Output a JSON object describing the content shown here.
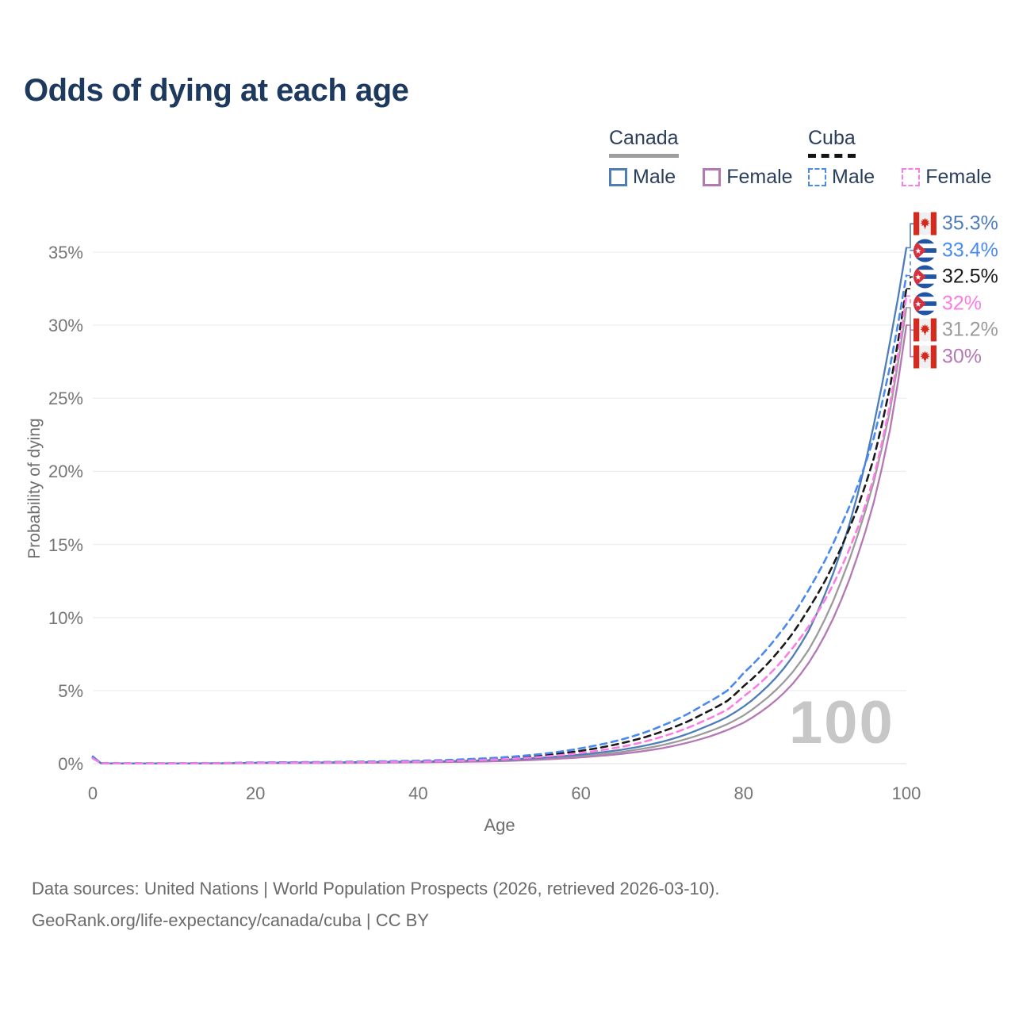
{
  "title": "Odds of dying at each age",
  "legend": {
    "groups": [
      {
        "label": "Canada",
        "underline_color": "#9e9e9e",
        "underline_style": "solid",
        "items": [
          {
            "label": "Male",
            "color": "#4e7db7",
            "dashed": false
          },
          {
            "label": "Female",
            "color": "#b478b4",
            "dashed": false
          }
        ]
      },
      {
        "label": "Cuba",
        "underline_color": "#141414",
        "underline_style": "dashed",
        "items": [
          {
            "label": "Male",
            "color": "#4a8af0",
            "dashed": true
          },
          {
            "label": "Female",
            "color": "#fb7de4",
            "dashed": true
          }
        ]
      }
    ]
  },
  "chart_data": {
    "type": "line",
    "title": "Odds of dying at each age",
    "xlabel": "Age",
    "ylabel": "Probability of dying",
    "xlim": [
      0,
      100
    ],
    "ylim": [
      0,
      37
    ],
    "x_ticks": [
      0,
      20,
      40,
      60,
      80,
      100
    ],
    "y_ticks": [
      0,
      5,
      10,
      15,
      20,
      25,
      30,
      35
    ],
    "y_tick_suffix": "%",
    "grid": "horizontal",
    "legend_position": "top-right",
    "watermark": "100",
    "x": [
      0,
      1,
      5,
      10,
      20,
      30,
      40,
      45,
      50,
      55,
      60,
      65,
      70,
      75,
      78,
      80,
      82,
      84,
      86,
      88,
      90,
      92,
      94,
      96,
      98,
      100
    ],
    "series": [
      {
        "name": "Canada Male",
        "country": "canada",
        "sex": "male",
        "color": "#4e7db7",
        "dashed": false,
        "end_label": "35.3%",
        "values": [
          0.5,
          0.03,
          0.01,
          0.01,
          0.06,
          0.09,
          0.14,
          0.18,
          0.26,
          0.4,
          0.62,
          0.95,
          1.5,
          2.45,
          3.2,
          3.9,
          4.8,
          5.9,
          7.3,
          9.1,
          11.6,
          14.6,
          18.4,
          23.2,
          28.9,
          35.3
        ]
      },
      {
        "name": "Cuba Male",
        "country": "cuba",
        "sex": "male",
        "color": "#4a8af0",
        "dashed": true,
        "end_label": "33.4%",
        "values": [
          0.45,
          0.03,
          0.02,
          0.02,
          0.08,
          0.12,
          0.2,
          0.28,
          0.42,
          0.65,
          1.05,
          1.65,
          2.6,
          4.0,
          5.0,
          6.2,
          7.3,
          8.6,
          10.1,
          11.9,
          13.9,
          16.3,
          19.0,
          22.3,
          27.2,
          33.4
        ]
      },
      {
        "name": "Cuba Both sexes",
        "country": "cuba",
        "sex": "both",
        "color": "#1a1a1a",
        "dashed": true,
        "end_label": "32.5%",
        "values": [
          0.4,
          0.028,
          0.015,
          0.015,
          0.06,
          0.1,
          0.17,
          0.23,
          0.35,
          0.55,
          0.88,
          1.4,
          2.2,
          3.4,
          4.3,
          5.3,
          6.3,
          7.5,
          8.9,
          10.6,
          12.5,
          14.8,
          17.5,
          20.9,
          25.8,
          32.5
        ]
      },
      {
        "name": "Cuba Female",
        "country": "cuba",
        "sex": "female",
        "color": "#fb7de4",
        "dashed": true,
        "end_label": "32%",
        "values": [
          0.35,
          0.025,
          0.012,
          0.012,
          0.045,
          0.08,
          0.14,
          0.19,
          0.29,
          0.46,
          0.73,
          1.15,
          1.85,
          2.9,
          3.7,
          4.6,
          5.5,
          6.6,
          7.9,
          9.4,
          11.2,
          13.4,
          16.1,
          19.6,
          24.6,
          32.0
        ]
      },
      {
        "name": "Canada Both sexes",
        "country": "canada",
        "sex": "both",
        "color": "#9b9b9b",
        "dashed": false,
        "end_label": "31.2%",
        "values": [
          0.45,
          0.025,
          0.008,
          0.008,
          0.045,
          0.07,
          0.11,
          0.145,
          0.21,
          0.33,
          0.52,
          0.8,
          1.27,
          2.05,
          2.7,
          3.3,
          4.1,
          5.05,
          6.25,
          7.8,
          9.9,
          12.5,
          15.6,
          19.3,
          24.2,
          31.2
        ]
      },
      {
        "name": "Canada Female",
        "country": "canada",
        "sex": "female",
        "color": "#b478b4",
        "dashed": false,
        "end_label": "30%",
        "values": [
          0.4,
          0.02,
          0.007,
          0.007,
          0.03,
          0.05,
          0.09,
          0.12,
          0.17,
          0.27,
          0.43,
          0.67,
          1.06,
          1.72,
          2.3,
          2.8,
          3.5,
          4.35,
          5.45,
          6.9,
          8.8,
          11.2,
          14.2,
          17.9,
          22.9,
          30.0
        ]
      }
    ]
  },
  "footer": {
    "line1": "Data sources: United Nations | World Population Prospects (2026, retrieved 2026-03-10).",
    "line2": "GeoRank.org/life-expectancy/canada/cuba | CC BY"
  }
}
